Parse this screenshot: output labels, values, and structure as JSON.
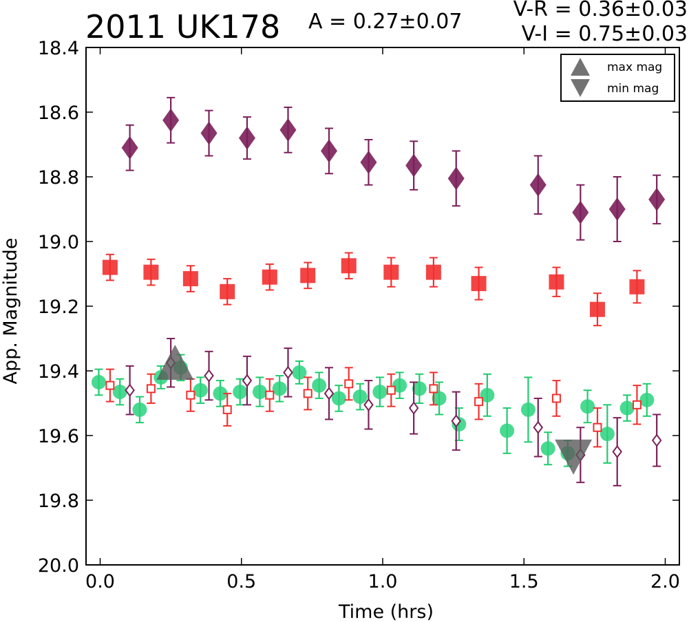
{
  "header": {
    "object_name": "2011 UK178",
    "amplitude": "A  = 0.27±0.07",
    "v_minus_r": "V-R = 0.36±0.03",
    "v_minus_i": "V-I  = 0.75±0.03"
  },
  "legend": {
    "items": [
      {
        "label": "max mag",
        "marker": "triangle-up"
      },
      {
        "label": "min mag",
        "marker": "triangle-down"
      }
    ]
  },
  "colors": {
    "purple": "#7b1f5a",
    "red": "#f23030",
    "green": "#2ad27e",
    "green_err": "#1ecb6e",
    "gray": "#5a5a5a"
  },
  "chart_data": {
    "type": "scatter",
    "xlabel": "Time (hrs)",
    "ylabel": "App. Magnitude",
    "xlim": [
      -0.05,
      2.05
    ],
    "ylim": [
      18.4,
      20.0
    ],
    "y_inverted": true,
    "xticks": [
      "0.0",
      "0.5",
      "1.0",
      "1.5",
      "2.0"
    ],
    "yticks": [
      "18.4",
      "18.6",
      "18.8",
      "19.0",
      "19.2",
      "19.4",
      "19.6",
      "19.8",
      "20.0"
    ],
    "legend_position": "top-right",
    "grid": false,
    "series": [
      {
        "marker": "diamond-filled",
        "color": "purple",
        "x": [
          0.105,
          0.25,
          0.385,
          0.52,
          0.665,
          0.81,
          0.95,
          1.11,
          1.26,
          1.55,
          1.7,
          1.83,
          1.97
        ],
        "y": [
          18.71,
          18.625,
          18.665,
          18.68,
          18.655,
          18.72,
          18.755,
          18.765,
          18.805,
          18.825,
          18.91,
          18.9,
          18.87
        ],
        "err": [
          0.07,
          0.07,
          0.07,
          0.065,
          0.07,
          0.07,
          0.07,
          0.075,
          0.085,
          0.09,
          0.085,
          0.1,
          0.075
        ]
      },
      {
        "marker": "square-filled",
        "color": "red",
        "x": [
          0.035,
          0.18,
          0.32,
          0.45,
          0.6,
          0.735,
          0.88,
          1.03,
          1.18,
          1.34,
          1.615,
          1.76,
          1.9
        ],
        "y": [
          19.08,
          19.095,
          19.115,
          19.155,
          19.11,
          19.105,
          19.075,
          19.095,
          19.095,
          19.13,
          19.125,
          19.21,
          19.14
        ],
        "err": [
          0.04,
          0.04,
          0.04,
          0.04,
          0.04,
          0.04,
          0.04,
          0.045,
          0.045,
          0.05,
          0.045,
          0.05,
          0.05
        ]
      },
      {
        "marker": "circle-filled",
        "color": "green",
        "x": [
          -0.005,
          0.07,
          0.14,
          0.215,
          0.285,
          0.355,
          0.425,
          0.495,
          0.565,
          0.635,
          0.705,
          0.775,
          0.845,
          0.92,
          0.99,
          1.06,
          1.13,
          1.2,
          1.27,
          1.37,
          1.44,
          1.515,
          1.585,
          1.655,
          1.725,
          1.795,
          1.865,
          1.935
        ],
        "y": [
          19.435,
          19.465,
          19.52,
          19.42,
          19.39,
          19.46,
          19.47,
          19.465,
          19.465,
          19.455,
          19.405,
          19.445,
          19.485,
          19.48,
          19.465,
          19.445,
          19.455,
          19.485,
          19.565,
          19.475,
          19.585,
          19.52,
          19.64,
          19.655,
          19.51,
          19.595,
          19.515,
          19.49
        ],
        "err": [
          0.04,
          0.04,
          0.04,
          0.035,
          0.04,
          0.04,
          0.04,
          0.04,
          0.045,
          0.04,
          0.035,
          0.04,
          0.04,
          0.04,
          0.045,
          0.04,
          0.045,
          0.05,
          0.05,
          0.065,
          0.07,
          0.1,
          0.05,
          0.04,
          0.05,
          0.09,
          0.04,
          0.05
        ]
      },
      {
        "marker": "square-open",
        "color": "red",
        "x": [
          0.035,
          0.18,
          0.32,
          0.45,
          0.6,
          0.735,
          0.88,
          1.03,
          1.18,
          1.34,
          1.615,
          1.76,
          1.9
        ],
        "y": [
          19.445,
          19.455,
          19.475,
          19.52,
          19.475,
          19.47,
          19.44,
          19.46,
          19.455,
          19.495,
          19.485,
          19.575,
          19.505
        ],
        "err": [
          0.05,
          0.045,
          0.05,
          0.05,
          0.05,
          0.05,
          0.05,
          0.05,
          0.05,
          0.055,
          0.055,
          0.06,
          0.06
        ]
      },
      {
        "marker": "diamond-open",
        "color": "purple",
        "x": [
          0.105,
          0.25,
          0.385,
          0.52,
          0.665,
          0.81,
          0.95,
          1.11,
          1.26,
          1.55,
          1.7,
          1.83,
          1.97
        ],
        "y": [
          19.46,
          19.375,
          19.415,
          19.43,
          19.405,
          19.47,
          19.505,
          19.515,
          19.555,
          19.575,
          19.66,
          19.65,
          19.615
        ],
        "err": [
          0.075,
          0.075,
          0.075,
          0.075,
          0.075,
          0.08,
          0.075,
          0.08,
          0.09,
          0.09,
          0.085,
          0.105,
          0.08
        ]
      },
      {
        "marker": "triangle-up",
        "color": "gray",
        "x": [
          0.265
        ],
        "y": [
          19.385
        ]
      },
      {
        "marker": "triangle-down",
        "color": "gray",
        "x": [
          1.675
        ],
        "y": [
          19.655
        ]
      }
    ]
  }
}
